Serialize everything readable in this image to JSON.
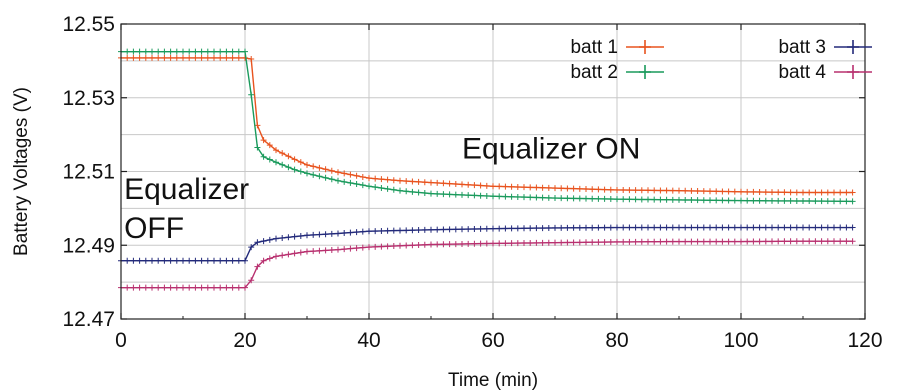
{
  "chart_data": {
    "type": "line",
    "xlabel": "Time (min)",
    "ylabel": "Battery Voltages (V)",
    "xlim": [
      0,
      120
    ],
    "ylim": [
      12.47,
      12.55
    ],
    "xticks": [
      "0",
      "20",
      "40",
      "60",
      "80",
      "100",
      "120"
    ],
    "yticks": [
      "12.47",
      "12.49",
      "12.51",
      "12.53",
      "12.55"
    ],
    "grid": true,
    "legend_position": "top-right",
    "annotations": [
      {
        "text": "Equalizer ON",
        "x": 55,
        "y": 12.5135
      },
      {
        "text": "Equalizer",
        "x": 0.5,
        "y": 12.5025
      },
      {
        "text": "OFF",
        "x": 0.5,
        "y": 12.492
      }
    ],
    "series": [
      {
        "name": "batt 1",
        "color": "#e8531e",
        "x": [
          0,
          5,
          10,
          15,
          20,
          21,
          22,
          23,
          25,
          28,
          30,
          35,
          40,
          45,
          50,
          60,
          70,
          80,
          90,
          100,
          110,
          118
        ],
        "y": [
          12.5408,
          12.5408,
          12.5408,
          12.5408,
          12.5408,
          12.5405,
          12.5225,
          12.5185,
          12.5158,
          12.5133,
          12.5118,
          12.5098,
          12.5082,
          12.5075,
          12.507,
          12.506,
          12.5055,
          12.505,
          12.5048,
          12.5045,
          12.5043,
          12.5043
        ]
      },
      {
        "name": "batt 2",
        "color": "#1a9a5c",
        "x": [
          0,
          5,
          10,
          15,
          20,
          21,
          22,
          23,
          25,
          28,
          30,
          35,
          40,
          45,
          50,
          60,
          70,
          80,
          90,
          100,
          110,
          118
        ],
        "y": [
          12.5425,
          12.5425,
          12.5425,
          12.5425,
          12.5425,
          12.5308,
          12.5165,
          12.514,
          12.5125,
          12.5105,
          12.5095,
          12.5075,
          12.506,
          12.5048,
          12.504,
          12.5033,
          12.5028,
          12.5025,
          12.5023,
          12.5021,
          12.502,
          12.5019
        ]
      },
      {
        "name": "batt 3",
        "color": "#232a7a",
        "x": [
          0,
          5,
          10,
          15,
          20,
          21,
          22,
          25,
          30,
          35,
          40,
          50,
          60,
          70,
          80,
          90,
          100,
          110,
          118
        ],
        "y": [
          12.4858,
          12.4858,
          12.4858,
          12.4858,
          12.4858,
          12.4895,
          12.4908,
          12.4918,
          12.4927,
          12.4932,
          12.4938,
          12.4942,
          12.4945,
          12.4947,
          12.4948,
          12.4948,
          12.4948,
          12.4948,
          12.4948
        ]
      },
      {
        "name": "batt 4",
        "color": "#b8306f",
        "x": [
          0,
          5,
          10,
          15,
          20,
          21,
          22,
          23,
          25,
          30,
          35,
          40,
          50,
          60,
          70,
          80,
          90,
          100,
          110,
          118
        ],
        "y": [
          12.4785,
          12.4785,
          12.4785,
          12.4785,
          12.4785,
          12.4805,
          12.4842,
          12.4858,
          12.487,
          12.4883,
          12.4888,
          12.4895,
          12.4902,
          12.4905,
          12.4907,
          12.4909,
          12.491,
          12.491,
          12.4911,
          12.4911
        ]
      }
    ]
  }
}
